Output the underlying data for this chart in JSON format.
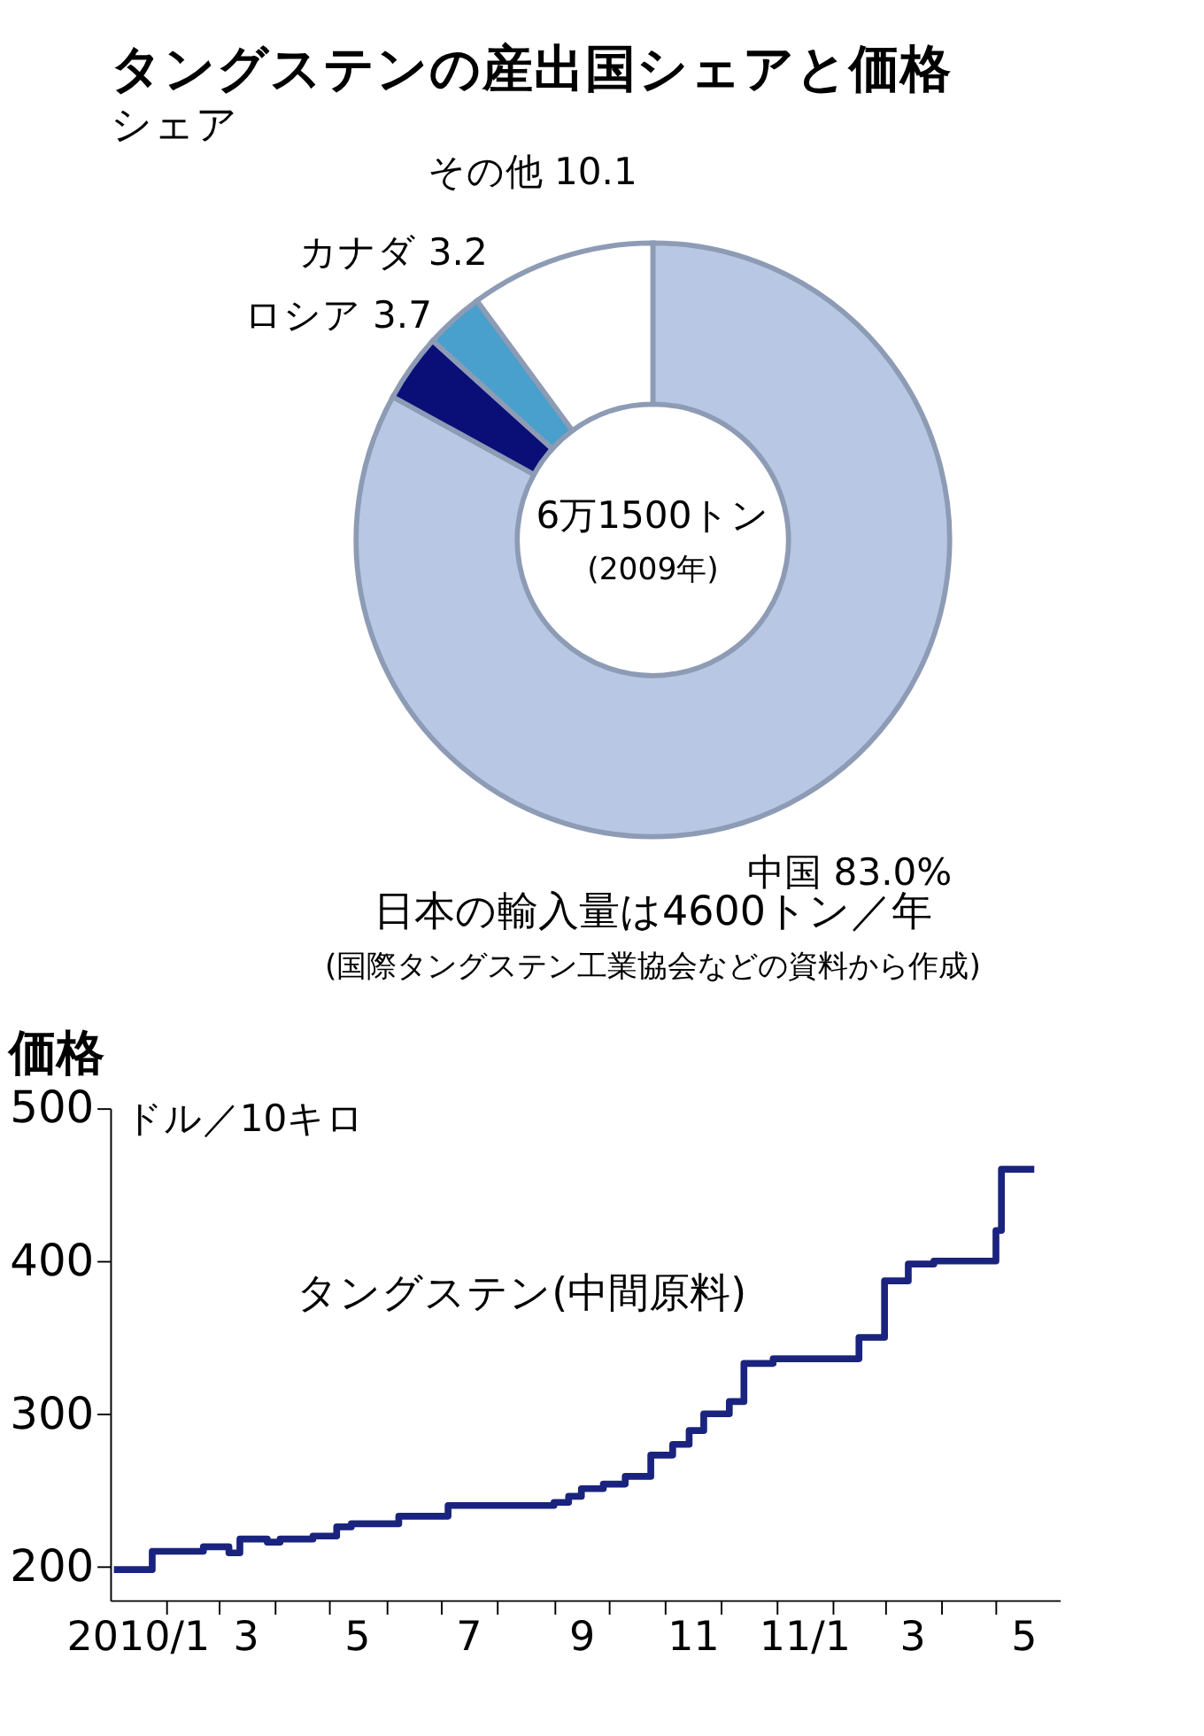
{
  "chart_data": [
    {
      "type": "donut",
      "title": "タングステンの産出国シェアと価格",
      "subtitle": "シェア",
      "categories": [
        "中国",
        "ロシア",
        "カナダ",
        "その他"
      ],
      "values": [
        83.0,
        3.7,
        3.2,
        10.1
      ],
      "colors": [
        "#b8c8e4",
        "#0a0f78",
        "#4aa0cc",
        "#ffffff"
      ],
      "value_labels": [
        "83.0%",
        "3.7",
        "3.2",
        "10.1"
      ],
      "annotations": [
        "6万1500トン",
        "(2009年)",
        "日本の輸入量は4600トン／年",
        "(国際タングステン工業協会などの資料から作成)"
      ],
      "legend": false
    },
    {
      "type": "step",
      "title": "価格",
      "ylabel": "ドル／10キロ",
      "x": [
        "2010-01-03",
        "2010-01-24",
        "2010-02-21",
        "2010-03-07",
        "2010-03-13",
        "2010-03-28",
        "2010-04-04",
        "2010-04-22",
        "2010-05-05",
        "2010-05-13",
        "2010-06-08",
        "2010-07-05",
        "2010-09-01",
        "2010-09-09",
        "2010-09-16",
        "2010-09-28",
        "2010-10-10",
        "2010-10-24",
        "2010-11-05",
        "2010-11-14",
        "2010-11-22",
        "2010-12-06",
        "2010-12-14",
        "2010-12-30",
        "2011-02-15",
        "2011-03-01",
        "2011-03-14",
        "2011-03-28",
        "2011-05-01",
        "2011-05-04",
        "2011-05-22"
      ],
      "series": [
        {
          "name": "タングステン(中間原料)",
          "color": "#1a237e",
          "values": [
            198,
            210,
            213,
            209,
            218,
            216,
            218,
            220,
            226,
            228,
            233,
            240,
            242,
            246,
            251,
            254,
            259,
            273,
            280,
            289,
            300,
            308,
            333,
            336,
            350,
            387,
            398,
            400,
            420,
            460,
            460
          ]
        }
      ],
      "xlim": [
        "2010-01-01",
        "2011-06-05"
      ],
      "xticks": [
        {
          "value": "2010-01-16",
          "label": "2010/1"
        },
        {
          "value": "2010-02-01",
          "label": null
        },
        {
          "value": "2010-03-01",
          "label": null
        },
        {
          "value": "2010-03-16",
          "label": "3"
        },
        {
          "value": "2010-04-01",
          "label": null
        },
        {
          "value": "2010-05-01",
          "label": null
        },
        {
          "value": "2010-05-16",
          "label": "5"
        },
        {
          "value": "2010-06-01",
          "label": null
        },
        {
          "value": "2010-07-01",
          "label": null
        },
        {
          "value": "2010-07-16",
          "label": "7"
        },
        {
          "value": "2010-08-01",
          "label": null
        },
        {
          "value": "2010-09-01",
          "label": null
        },
        {
          "value": "2010-09-16",
          "label": "9"
        },
        {
          "value": "2010-10-01",
          "label": null
        },
        {
          "value": "2010-11-01",
          "label": null
        },
        {
          "value": "2010-11-16",
          "label": "11"
        },
        {
          "value": "2010-12-01",
          "label": null
        },
        {
          "value": "2011-01-01",
          "label": null
        },
        {
          "value": "2011-01-16",
          "label": "11/1"
        },
        {
          "value": "2011-02-01",
          "label": null
        },
        {
          "value": "2011-03-01",
          "label": null
        },
        {
          "value": "2011-03-16",
          "label": "3"
        },
        {
          "value": "2011-04-01",
          "label": null
        },
        {
          "value": "2011-05-01",
          "label": null
        },
        {
          "value": "2011-05-16",
          "label": "5"
        }
      ],
      "ylim": [
        178,
        500
      ],
      "yticks": [
        200,
        300,
        400,
        500
      ],
      "grid": false
    }
  ]
}
